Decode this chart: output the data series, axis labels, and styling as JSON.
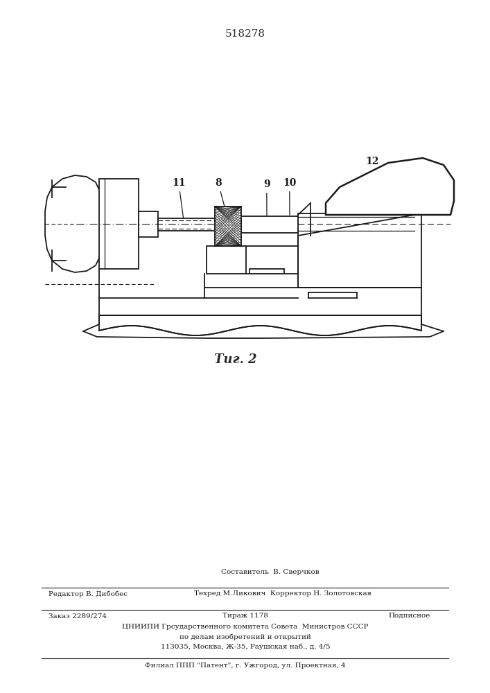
{
  "patent_number": "518278",
  "fig_label": "Τиг. 2",
  "bg_color": "#ffffff",
  "line_color": "#2a2a2a",
  "footer": {
    "line1_left": "Редактор В. Дибобес",
    "line1_center_top": "Составитель  В. Сверчков",
    "line1_center": "Техред М.Ликович  Корректор Н. Золотовская",
    "line2_left": "Заказ 2289/274",
    "line2_center": "Тираж 1178",
    "line2_right": "Подписное",
    "line3": "ЦНИИПИ Грсударственного комитета Совета  Министров СССР",
    "line4": "по делам изобретений и открытий",
    "line5": "113035, Москва, Ж-35, Раушская наб., д. 4/5",
    "line6": "Филиал ППП \"Патент\", г. Ужгород, ул. Проектная, 4"
  }
}
